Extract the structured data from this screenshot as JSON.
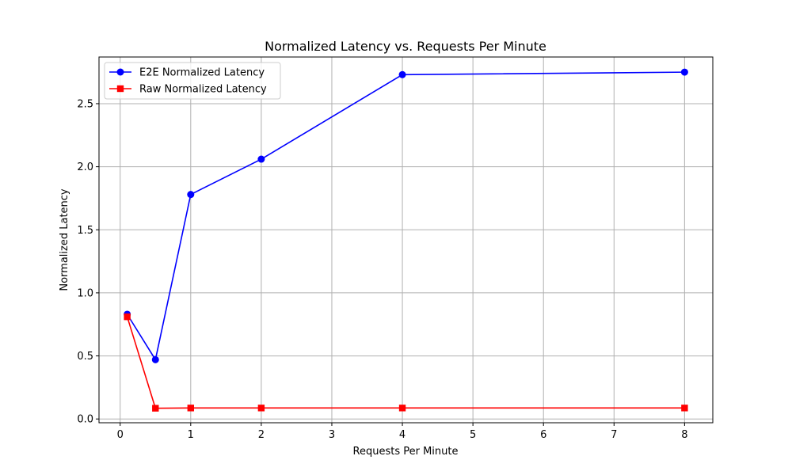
{
  "chart_data": {
    "type": "line",
    "title": "Normalized Latency vs. Requests Per Minute",
    "xlabel": "Requests Per Minute",
    "ylabel": "Normalized Latency",
    "xlim": [
      -0.3,
      8.4
    ],
    "ylim": [
      -0.03,
      2.87
    ],
    "xticks": [
      0,
      1,
      2,
      3,
      4,
      5,
      6,
      7,
      8
    ],
    "yticks": [
      0.0,
      0.5,
      1.0,
      1.5,
      2.0,
      2.5
    ],
    "xtick_labels": [
      "0",
      "1",
      "2",
      "3",
      "4",
      "5",
      "6",
      "7",
      "8"
    ],
    "ytick_labels": [
      "0.0",
      "0.5",
      "1.0",
      "1.5",
      "2.0",
      "2.5"
    ],
    "grid": true,
    "legend_position": "top-left",
    "x": [
      0.1,
      0.5,
      1,
      2,
      4,
      8
    ],
    "series": [
      {
        "name": "E2E Normalized Latency",
        "values": [
          0.83,
          0.47,
          1.78,
          2.06,
          2.73,
          2.75
        ],
        "color": "#0000ff",
        "marker": "circle"
      },
      {
        "name": "Raw Normalized Latency",
        "values": [
          0.81,
          0.085,
          0.087,
          0.087,
          0.087,
          0.087
        ],
        "color": "#ff0000",
        "marker": "square"
      }
    ]
  }
}
